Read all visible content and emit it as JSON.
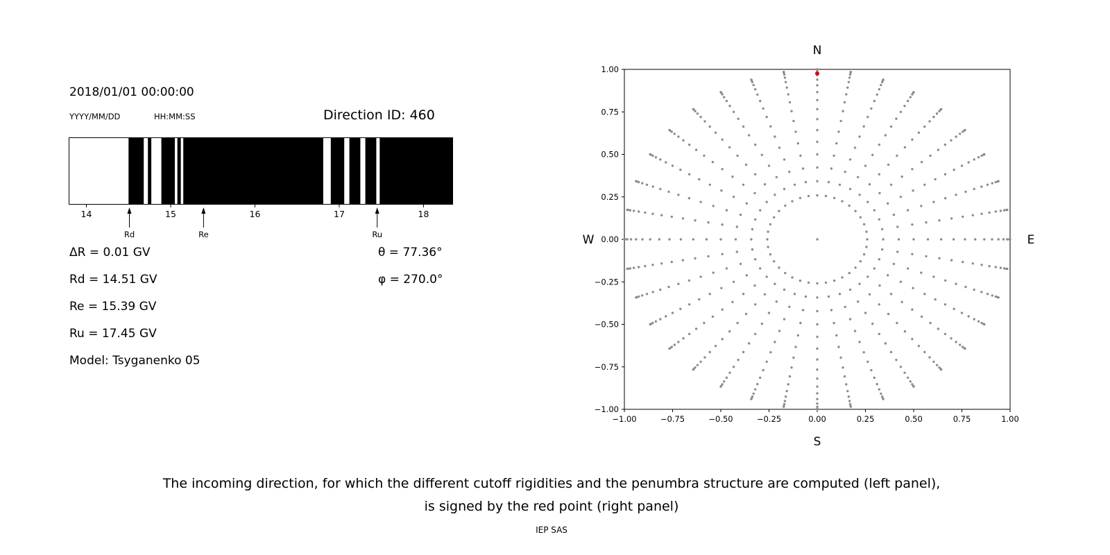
{
  "left_panel": {
    "datetime": "2018/01/01 00:00:00",
    "date_format": "YYYY/MM/DD",
    "time_format": "HH:MM:SS",
    "direction_id": "Direction ID: 460",
    "delta_r": "ΔR = 0.01 GV",
    "rd": "Rd = 14.51 GV",
    "re": "Re = 15.39 GV",
    "ru": "Ru = 17.45 GV",
    "model": "Model: Tsyganenko 05",
    "theta": "θ = 77.36°",
    "phi": "φ = 270.0°"
  },
  "caption": {
    "line1": "The incoming direction, for which the different cutoff rigidities and the penumbra structure are computed (left panel),",
    "line2": "is signed by the red point (right panel)",
    "credit": "IEP SAS"
  },
  "chart_data": [
    {
      "type": "bar",
      "description": "Penumbra structure band: black segments are allowed rigidity intervals (GV), white are forbidden",
      "xlim": [
        13.79,
        18.35
      ],
      "xticks": [
        14,
        15,
        16,
        17,
        18
      ],
      "black_segments_gv": [
        [
          14.5,
          14.68
        ],
        [
          14.73,
          14.77
        ],
        [
          14.89,
          15.05
        ],
        [
          15.08,
          15.12
        ],
        [
          15.15,
          16.81
        ],
        [
          16.9,
          17.06
        ],
        [
          17.12,
          17.25
        ],
        [
          17.31,
          17.44
        ],
        [
          17.48,
          18.35
        ]
      ],
      "markers": [
        {
          "label": "Rd",
          "value": 14.51
        },
        {
          "label": "Re",
          "value": 15.39
        },
        {
          "label": "Ru",
          "value": 17.45
        }
      ]
    },
    {
      "type": "scatter",
      "description": "Sky map of incoming directions; grey dots form radial spokes every 10 deg azimuth with radius sin(zenith); red point marks Direction ID 460",
      "xlim": [
        -1,
        1
      ],
      "ylim": [
        -1,
        1
      ],
      "xticks": [
        -1.0,
        -0.75,
        -0.5,
        -0.25,
        0.0,
        0.25,
        0.5,
        0.75,
        1.0
      ],
      "yticks": [
        -1.0,
        -0.75,
        -0.5,
        -0.25,
        0.0,
        0.25,
        0.5,
        0.75,
        1.0
      ],
      "compass_labels": {
        "top": "N",
        "right": "E",
        "bottom": "S",
        "left": "W"
      },
      "gray_dots": {
        "azimuth_step_deg": 10,
        "zenith_min_deg": 15,
        "zenith_max_deg": 90,
        "zenith_step_deg": 5,
        "radius": "sin(zenith)",
        "center_dot": true,
        "color": "#8c8c8c"
      },
      "red_point": {
        "x": 0.0,
        "y": 0.976,
        "color": "#e00000"
      }
    }
  ]
}
